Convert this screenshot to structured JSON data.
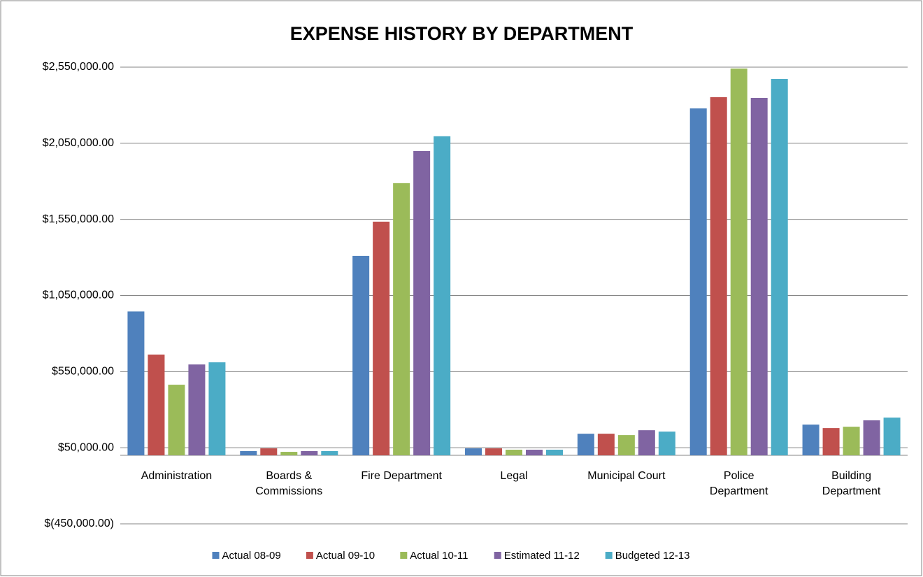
{
  "chart_data": {
    "type": "bar",
    "title": "EXPENSE HISTORY BY DEPARTMENT",
    "categories": [
      "Administration",
      "Boards &\nCommissions",
      "Fire Department",
      "Legal",
      "Municipal Court",
      "Police\nDepartment",
      "Building\nDepartment"
    ],
    "series": [
      {
        "name": "Actual 08-09",
        "color": "#4f81bd",
        "values": [
          945000,
          28000,
          1310000,
          46000,
          142000,
          2279000,
          202000
        ]
      },
      {
        "name": "Actual 09-10",
        "color": "#c0504d",
        "values": [
          662000,
          46000,
          1535000,
          46000,
          142000,
          2353000,
          179000
        ]
      },
      {
        "name": "Actual 10-11",
        "color": "#9bbb59",
        "values": [
          464000,
          23000,
          1788000,
          37000,
          133000,
          2541000,
          188000
        ]
      },
      {
        "name": "Estimated 11-12",
        "color": "#8064a2",
        "values": [
          597000,
          28000,
          1999000,
          37000,
          165000,
          2348000,
          230000
        ]
      },
      {
        "name": "Budgeted 12-13",
        "color": "#4bacc6",
        "values": [
          611000,
          28000,
          2096000,
          37000,
          156000,
          2472000,
          248000
        ]
      }
    ],
    "ylim": [
      -450000,
      2550000
    ],
    "yticks": [
      {
        "value": -450000,
        "label": "$(450,000.00)"
      },
      {
        "value": 50000,
        "label": "$50,000.00"
      },
      {
        "value": 550000,
        "label": "$550,000.00"
      },
      {
        "value": 1050000,
        "label": "$1,050,000.00"
      },
      {
        "value": 1550000,
        "label": "$1,550,000.00"
      },
      {
        "value": 2050000,
        "label": "$2,050,000.00"
      },
      {
        "value": 2550000,
        "label": "$2,550,000.00"
      }
    ],
    "grid": true,
    "legend": "bottom"
  }
}
